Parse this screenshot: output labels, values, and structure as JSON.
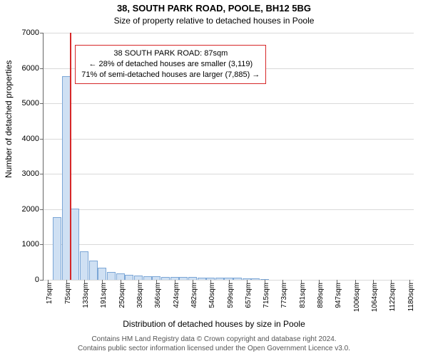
{
  "title_main": "38, SOUTH PARK ROAD, POOLE, BH12 5BG",
  "title_sub": "Size of property relative to detached houses in Poole",
  "title_fontsize_main": 13,
  "title_fontsize_sub": 12,
  "ylabel": "Number of detached properties",
  "xlabel": "Distribution of detached houses by size in Poole",
  "axis_label_fontsize": 12,
  "background_color": "#ffffff",
  "grid_color": "#d9d9d9",
  "axis_color": "#666666",
  "ylim": [
    0,
    7000
  ],
  "yticks": [
    0,
    1000,
    2000,
    3000,
    4000,
    5000,
    6000,
    7000
  ],
  "xtick_labels": [
    "17sqm",
    "75sqm",
    "133sqm",
    "191sqm",
    "250sqm",
    "308sqm",
    "366sqm",
    "424sqm",
    "482sqm",
    "540sqm",
    "599sqm",
    "657sqm",
    "715sqm",
    "773sqm",
    "831sqm",
    "889sqm",
    "947sqm",
    "1006sqm",
    "1064sqm",
    "1122sqm",
    "1180sqm"
  ],
  "xtick_positions_idx": [
    0,
    2,
    4,
    6,
    8,
    10,
    12,
    14,
    16,
    18,
    20,
    22,
    24,
    26,
    28,
    30,
    32,
    34,
    36,
    38,
    40
  ],
  "bars": {
    "type": "histogram",
    "count": 41,
    "values": [
      0,
      1780,
      5760,
      2020,
      800,
      550,
      340,
      230,
      190,
      150,
      130,
      110,
      100,
      90,
      85,
      80,
      75,
      70,
      65,
      62,
      60,
      55,
      50,
      45,
      30,
      0,
      0,
      0,
      0,
      0,
      0,
      0,
      0,
      0,
      0,
      0,
      0,
      0,
      0,
      0,
      0
    ],
    "bar_fill": "#cfe0f3",
    "bar_stroke": "#7ba6d6",
    "bar_width_frac": 0.95
  },
  "reference_line": {
    "x_idx": 2.45,
    "color": "#d62728"
  },
  "info_box": {
    "border_color": "#d62728",
    "left_idx": 3.0,
    "top_value": 6650,
    "lines": [
      "38 SOUTH PARK ROAD: 87sqm",
      "← 28% of detached houses are smaller (3,119)",
      "71% of semi-detached houses are larger (7,885) →"
    ]
  },
  "footer_lines": [
    "Contains HM Land Registry data © Crown copyright and database right 2024.",
    "Contains public sector information licensed under the Open Government Licence v3.0."
  ]
}
